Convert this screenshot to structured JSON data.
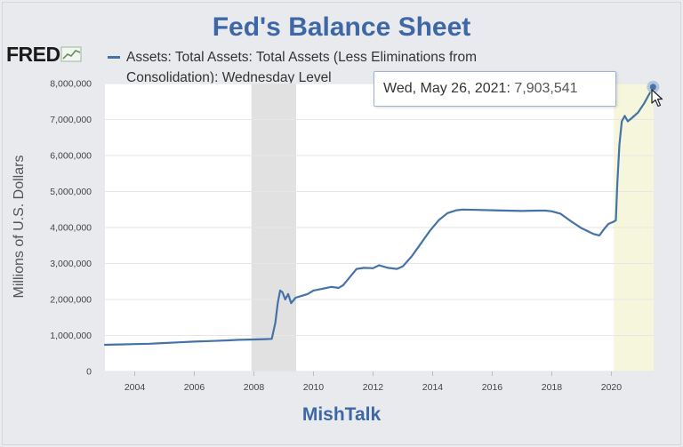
{
  "chart_data": {
    "type": "line",
    "title": "Fed's Balance Sheet",
    "subtitle": "MishTalk",
    "logo_text": "FRED",
    "legend": [
      "Assets: Total Assets: Total Assets (Less Eliminations from",
      "Consolidation): Wednesday Level"
    ],
    "ylabel": "Millions of U.S. Dollars",
    "xlabel": "",
    "ylim": [
      0,
      8000000
    ],
    "xlim": [
      2003.0,
      2021.42
    ],
    "y_ticks": [
      {
        "value": 0,
        "label": "0"
      },
      {
        "value": 1000000,
        "label": "1,000,000"
      },
      {
        "value": 2000000,
        "label": "2,000,000"
      },
      {
        "value": 3000000,
        "label": "3,000,000"
      },
      {
        "value": 4000000,
        "label": "4,000,000"
      },
      {
        "value": 5000000,
        "label": "5,000,000"
      },
      {
        "value": 6000000,
        "label": "6,000,000"
      },
      {
        "value": 7000000,
        "label": "7,000,000"
      },
      {
        "value": 8000000,
        "label": "8,000,000"
      }
    ],
    "x_ticks": [
      {
        "value": 2004,
        "label": "2004"
      },
      {
        "value": 2006,
        "label": "2006"
      },
      {
        "value": 2008,
        "label": "2008"
      },
      {
        "value": 2010,
        "label": "2010"
      },
      {
        "value": 2012,
        "label": "2012"
      },
      {
        "value": 2014,
        "label": "2014"
      },
      {
        "value": 2016,
        "label": "2016"
      },
      {
        "value": 2018,
        "label": "2018"
      },
      {
        "value": 2020,
        "label": "2020"
      }
    ],
    "recessions": [
      {
        "start": 2007.92,
        "end": 2009.42,
        "color": "#e1e1e1"
      },
      {
        "start": 2020.08,
        "end": 2021.42,
        "color": "#f6f6dc"
      }
    ],
    "series": [
      {
        "color": "#4572a7",
        "points": [
          [
            2003.0,
            740000
          ],
          [
            2003.5,
            750000
          ],
          [
            2004.0,
            760000
          ],
          [
            2004.5,
            770000
          ],
          [
            2005.0,
            790000
          ],
          [
            2005.5,
            810000
          ],
          [
            2006.0,
            830000
          ],
          [
            2006.5,
            845000
          ],
          [
            2007.0,
            860000
          ],
          [
            2007.5,
            880000
          ],
          [
            2008.0,
            890000
          ],
          [
            2008.4,
            900000
          ],
          [
            2008.6,
            905000
          ],
          [
            2008.72,
            1350000
          ],
          [
            2008.8,
            1900000
          ],
          [
            2008.88,
            2250000
          ],
          [
            2008.96,
            2200000
          ],
          [
            2009.05,
            2000000
          ],
          [
            2009.15,
            2150000
          ],
          [
            2009.25,
            1900000
          ],
          [
            2009.4,
            2050000
          ],
          [
            2009.6,
            2100000
          ],
          [
            2009.8,
            2150000
          ],
          [
            2010.0,
            2250000
          ],
          [
            2010.3,
            2300000
          ],
          [
            2010.6,
            2350000
          ],
          [
            2010.85,
            2320000
          ],
          [
            2011.0,
            2400000
          ],
          [
            2011.25,
            2650000
          ],
          [
            2011.45,
            2850000
          ],
          [
            2011.7,
            2880000
          ],
          [
            2012.0,
            2870000
          ],
          [
            2012.2,
            2950000
          ],
          [
            2012.5,
            2880000
          ],
          [
            2012.8,
            2850000
          ],
          [
            2013.0,
            2920000
          ],
          [
            2013.3,
            3200000
          ],
          [
            2013.6,
            3550000
          ],
          [
            2013.9,
            3900000
          ],
          [
            2014.2,
            4200000
          ],
          [
            2014.5,
            4400000
          ],
          [
            2014.8,
            4480000
          ],
          [
            2015.0,
            4500000
          ],
          [
            2015.5,
            4490000
          ],
          [
            2016.0,
            4480000
          ],
          [
            2016.5,
            4470000
          ],
          [
            2017.0,
            4460000
          ],
          [
            2017.5,
            4470000
          ],
          [
            2017.8,
            4470000
          ],
          [
            2018.0,
            4450000
          ],
          [
            2018.3,
            4380000
          ],
          [
            2018.6,
            4200000
          ],
          [
            2019.0,
            3980000
          ],
          [
            2019.4,
            3820000
          ],
          [
            2019.6,
            3780000
          ],
          [
            2019.75,
            3950000
          ],
          [
            2019.9,
            4100000
          ],
          [
            2020.05,
            4150000
          ],
          [
            2020.15,
            4200000
          ],
          [
            2020.2,
            5200000
          ],
          [
            2020.27,
            6300000
          ],
          [
            2020.35,
            6950000
          ],
          [
            2020.45,
            7100000
          ],
          [
            2020.55,
            6950000
          ],
          [
            2020.7,
            7050000
          ],
          [
            2020.9,
            7200000
          ],
          [
            2021.1,
            7450000
          ],
          [
            2021.3,
            7750000
          ],
          [
            2021.4,
            7903541
          ]
        ]
      }
    ],
    "tooltip": {
      "date": "Wed, May 26, 2021:",
      "value": "7,903,541",
      "x": 2021.4,
      "y": 7903541
    }
  }
}
